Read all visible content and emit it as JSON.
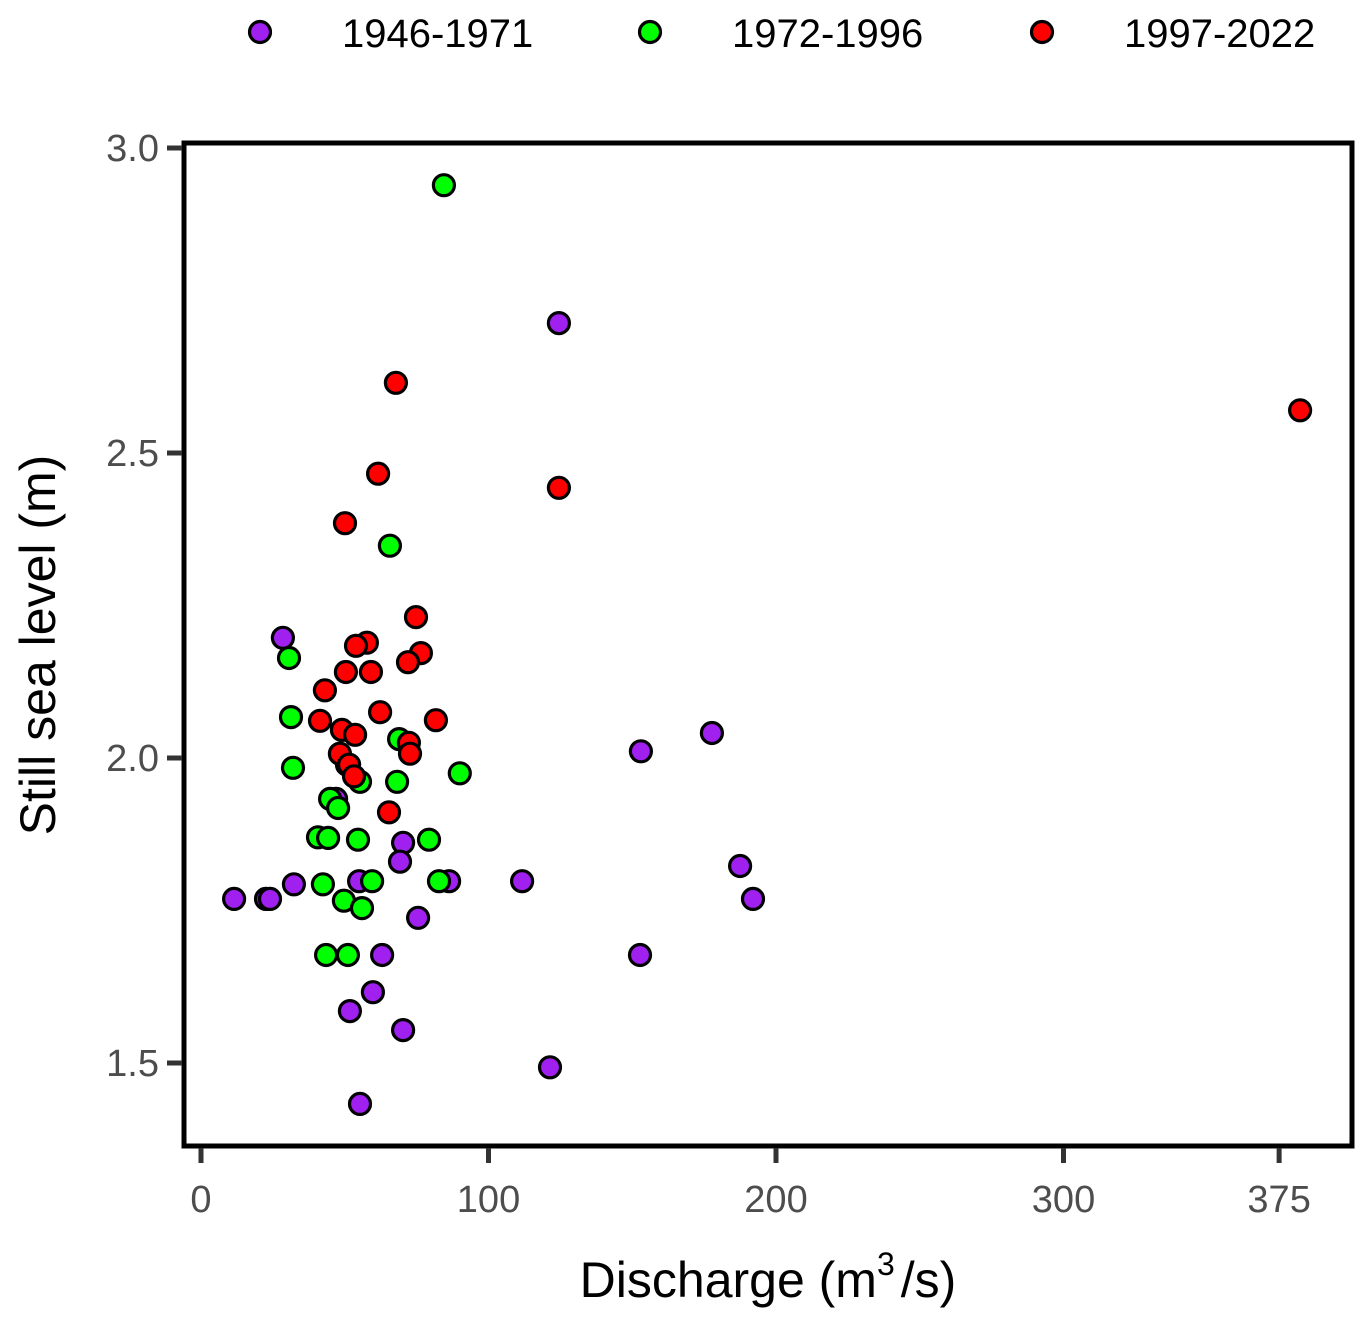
{
  "chart_data": {
    "type": "scatter",
    "title": "",
    "xlabel": "Discharge (m",
    "xlabel_sup": "3",
    "xlabel_suffix": "/s)",
    "ylabel": "Still sea level (m)",
    "xlim": [
      -6,
      402
    ],
    "ylim": [
      1.365,
      3.008
    ],
    "x_ticks": [
      0,
      100,
      200,
      300,
      375
    ],
    "x_tick_labels": [
      "0",
      "100",
      "200",
      "300",
      "375"
    ],
    "y_ticks": [
      1.5,
      2.0,
      2.5,
      3.0
    ],
    "y_tick_labels": [
      "1.5",
      "2.0",
      "2.5",
      "3.0"
    ],
    "grid": false,
    "legend_position": "top",
    "series": [
      {
        "name": "1946-1971",
        "color": "#A020F0",
        "points": [
          [
            28.5,
            2.197
          ],
          [
            124.5,
            2.713
          ],
          [
            11.5,
            1.769
          ],
          [
            22.6,
            1.769
          ],
          [
            24.0,
            1.769
          ],
          [
            32.3,
            1.793
          ],
          [
            70.3,
            1.861
          ],
          [
            69.2,
            1.83
          ],
          [
            55.0,
            1.798
          ],
          [
            86.3,
            1.798
          ],
          [
            111.7,
            1.798
          ],
          [
            75.5,
            1.738
          ],
          [
            63.0,
            1.677
          ],
          [
            59.8,
            1.616
          ],
          [
            51.8,
            1.585
          ],
          [
            70.3,
            1.554
          ],
          [
            55.3,
            1.433
          ],
          [
            121.4,
            1.493
          ],
          [
            153.0,
            2.011
          ],
          [
            177.7,
            2.041
          ],
          [
            187.5,
            1.823
          ],
          [
            192.0,
            1.769
          ],
          [
            152.7,
            1.677
          ],
          [
            47.0,
            1.933
          ],
          [
            50.8,
            1.989
          ]
        ]
      },
      {
        "name": "1972-1996",
        "color": "#00FF00",
        "points": [
          [
            84.5,
            2.939
          ],
          [
            65.7,
            2.348
          ],
          [
            30.6,
            2.164
          ],
          [
            31.3,
            2.067
          ],
          [
            32.0,
            1.984
          ],
          [
            68.9,
            2.031
          ],
          [
            68.2,
            1.961
          ],
          [
            55.3,
            1.961
          ],
          [
            90.0,
            1.975
          ],
          [
            44.9,
            1.933
          ],
          [
            47.7,
            1.918
          ],
          [
            40.7,
            1.87
          ],
          [
            44.2,
            1.869
          ],
          [
            54.6,
            1.866
          ],
          [
            79.3,
            1.866
          ],
          [
            42.4,
            1.793
          ],
          [
            59.5,
            1.798
          ],
          [
            82.8,
            1.798
          ],
          [
            49.7,
            1.766
          ],
          [
            56.0,
            1.754
          ],
          [
            43.5,
            1.677
          ],
          [
            51.1,
            1.677
          ]
        ]
      },
      {
        "name": "1997-2022",
        "color": "#FF0000",
        "points": [
          [
            67.8,
            2.615
          ],
          [
            61.6,
            2.466
          ],
          [
            124.5,
            2.443
          ],
          [
            50.1,
            2.385
          ],
          [
            382.3,
            2.57
          ],
          [
            74.8,
            2.231
          ],
          [
            57.7,
            2.189
          ],
          [
            53.9,
            2.184
          ],
          [
            76.5,
            2.172
          ],
          [
            72.0,
            2.157
          ],
          [
            50.4,
            2.141
          ],
          [
            59.1,
            2.141
          ],
          [
            43.1,
            2.111
          ],
          [
            62.3,
            2.075
          ],
          [
            41.4,
            2.061
          ],
          [
            81.7,
            2.062
          ],
          [
            49.0,
            2.046
          ],
          [
            53.6,
            2.038
          ],
          [
            72.3,
            2.025
          ],
          [
            72.7,
            2.007
          ],
          [
            48.3,
            2.007
          ],
          [
            51.5,
            1.989
          ],
          [
            53.2,
            1.97
          ],
          [
            65.4,
            1.911
          ]
        ]
      }
    ]
  }
}
